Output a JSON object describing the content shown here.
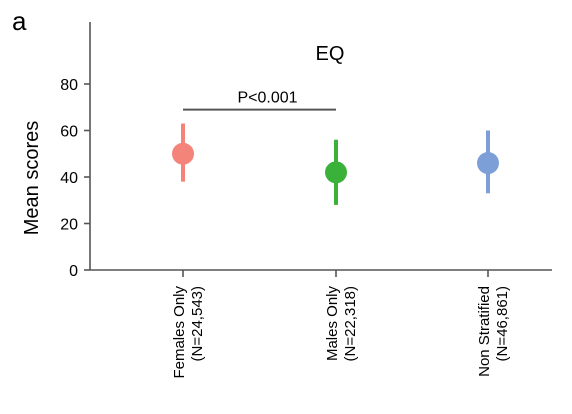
{
  "panel_label": "a",
  "chart_data": {
    "type": "scatter",
    "title": "EQ",
    "xlabel": "",
    "ylabel": "Mean scores",
    "ylim": [
      0,
      100
    ],
    "yticks": [
      0,
      20,
      40,
      60,
      80
    ],
    "grid": false,
    "categories": [
      {
        "line1": "Females Only",
        "line2": "(N=24,543)"
      },
      {
        "line1": "Males Only",
        "line2": "(N=22,318)"
      },
      {
        "line1": "Non Stratified",
        "line2": "(N=46,861)"
      }
    ],
    "points": [
      {
        "mean": 50,
        "low": 38,
        "high": 63,
        "color": "#f4847a"
      },
      {
        "mean": 42,
        "low": 28,
        "high": 56,
        "color": "#3ab23a"
      },
      {
        "mean": 46,
        "low": 33,
        "high": 60,
        "color": "#7b9fd6"
      }
    ],
    "annotation": {
      "text": "P<0.001",
      "from_index": 0,
      "to_index": 1,
      "y": 69
    }
  }
}
